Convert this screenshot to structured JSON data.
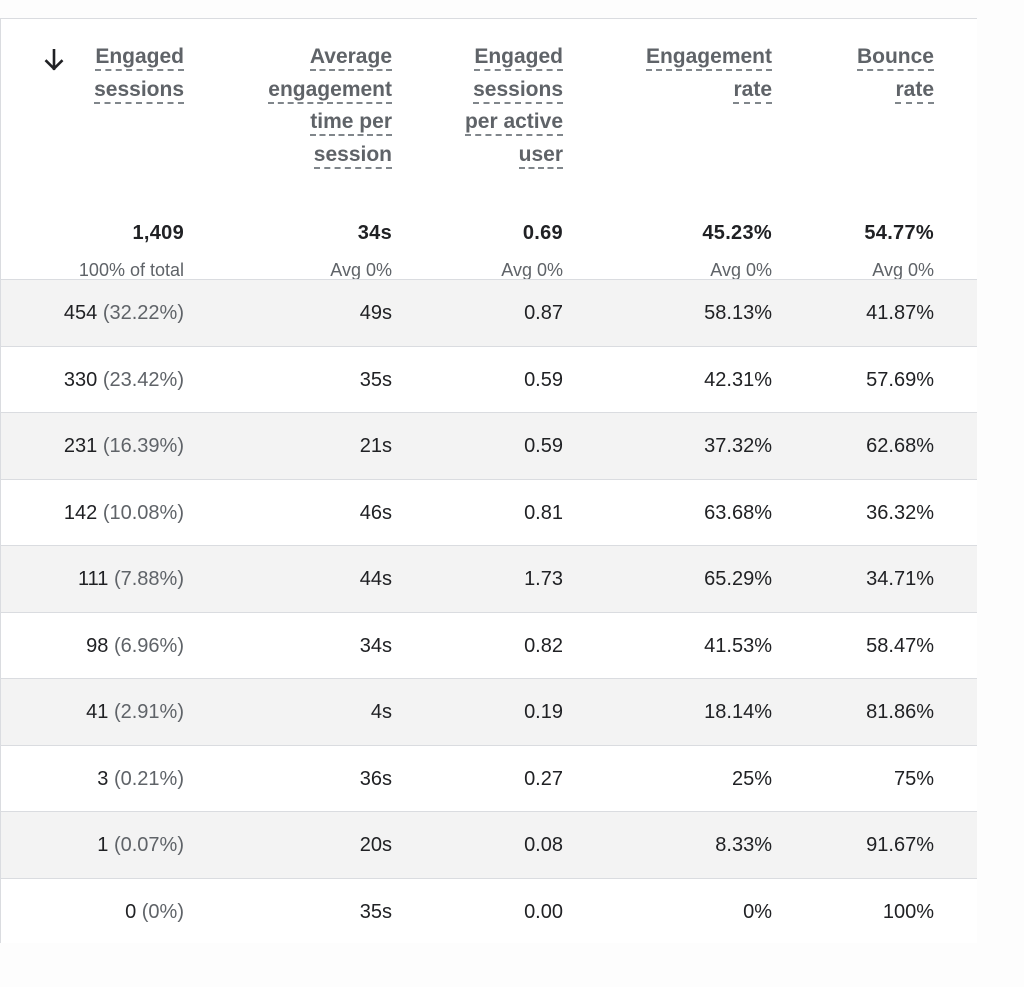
{
  "columns": [
    {
      "label_lines": [
        "Engaged",
        "sessions"
      ],
      "sorted": true,
      "sort_icon": "arrow-down-icon"
    },
    {
      "label_lines": [
        "Average",
        "engagement",
        "time per",
        "session"
      ]
    },
    {
      "label_lines": [
        "Engaged",
        "sessions",
        "per active",
        "user"
      ]
    },
    {
      "label_lines": [
        "Engagement",
        "rate"
      ]
    },
    {
      "label_lines": [
        "Bounce",
        "rate"
      ]
    }
  ],
  "totals": [
    {
      "value": "1,409",
      "sub": "100% of total"
    },
    {
      "value": "34s",
      "sub": "Avg 0%"
    },
    {
      "value": "0.69",
      "sub": "Avg 0%"
    },
    {
      "value": "45.23%",
      "sub": "Avg 0%"
    },
    {
      "value": "54.77%",
      "sub": "Avg 0%"
    }
  ],
  "rows": [
    {
      "sessions": "454",
      "share": "(32.22%)",
      "avg_time": "49s",
      "per_user": "0.87",
      "engagement_rate": "58.13%",
      "bounce_rate": "41.87%"
    },
    {
      "sessions": "330",
      "share": "(23.42%)",
      "avg_time": "35s",
      "per_user": "0.59",
      "engagement_rate": "42.31%",
      "bounce_rate": "57.69%"
    },
    {
      "sessions": "231",
      "share": "(16.39%)",
      "avg_time": "21s",
      "per_user": "0.59",
      "engagement_rate": "37.32%",
      "bounce_rate": "62.68%"
    },
    {
      "sessions": "142",
      "share": "(10.08%)",
      "avg_time": "46s",
      "per_user": "0.81",
      "engagement_rate": "63.68%",
      "bounce_rate": "36.32%"
    },
    {
      "sessions": "111",
      "share": "(7.88%)",
      "avg_time": "44s",
      "per_user": "1.73",
      "engagement_rate": "65.29%",
      "bounce_rate": "34.71%"
    },
    {
      "sessions": "98",
      "share": "(6.96%)",
      "avg_time": "34s",
      "per_user": "0.82",
      "engagement_rate": "41.53%",
      "bounce_rate": "58.47%"
    },
    {
      "sessions": "41",
      "share": "(2.91%)",
      "avg_time": "4s",
      "per_user": "0.19",
      "engagement_rate": "18.14%",
      "bounce_rate": "81.86%"
    },
    {
      "sessions": "3",
      "share": "(0.21%)",
      "avg_time": "36s",
      "per_user": "0.27",
      "engagement_rate": "25%",
      "bounce_rate": "75%"
    },
    {
      "sessions": "1",
      "share": "(0.07%)",
      "avg_time": "20s",
      "per_user": "0.08",
      "engagement_rate": "8.33%",
      "bounce_rate": "91.67%"
    },
    {
      "sessions": "0",
      "share": "(0%)",
      "avg_time": "35s",
      "per_user": "0.00",
      "engagement_rate": "0%",
      "bounce_rate": "100%"
    }
  ],
  "colors": {
    "shaded_row": "#f3f3f3",
    "border": "#dadce0",
    "muted_text": "#5f6368",
    "text": "#202124"
  }
}
